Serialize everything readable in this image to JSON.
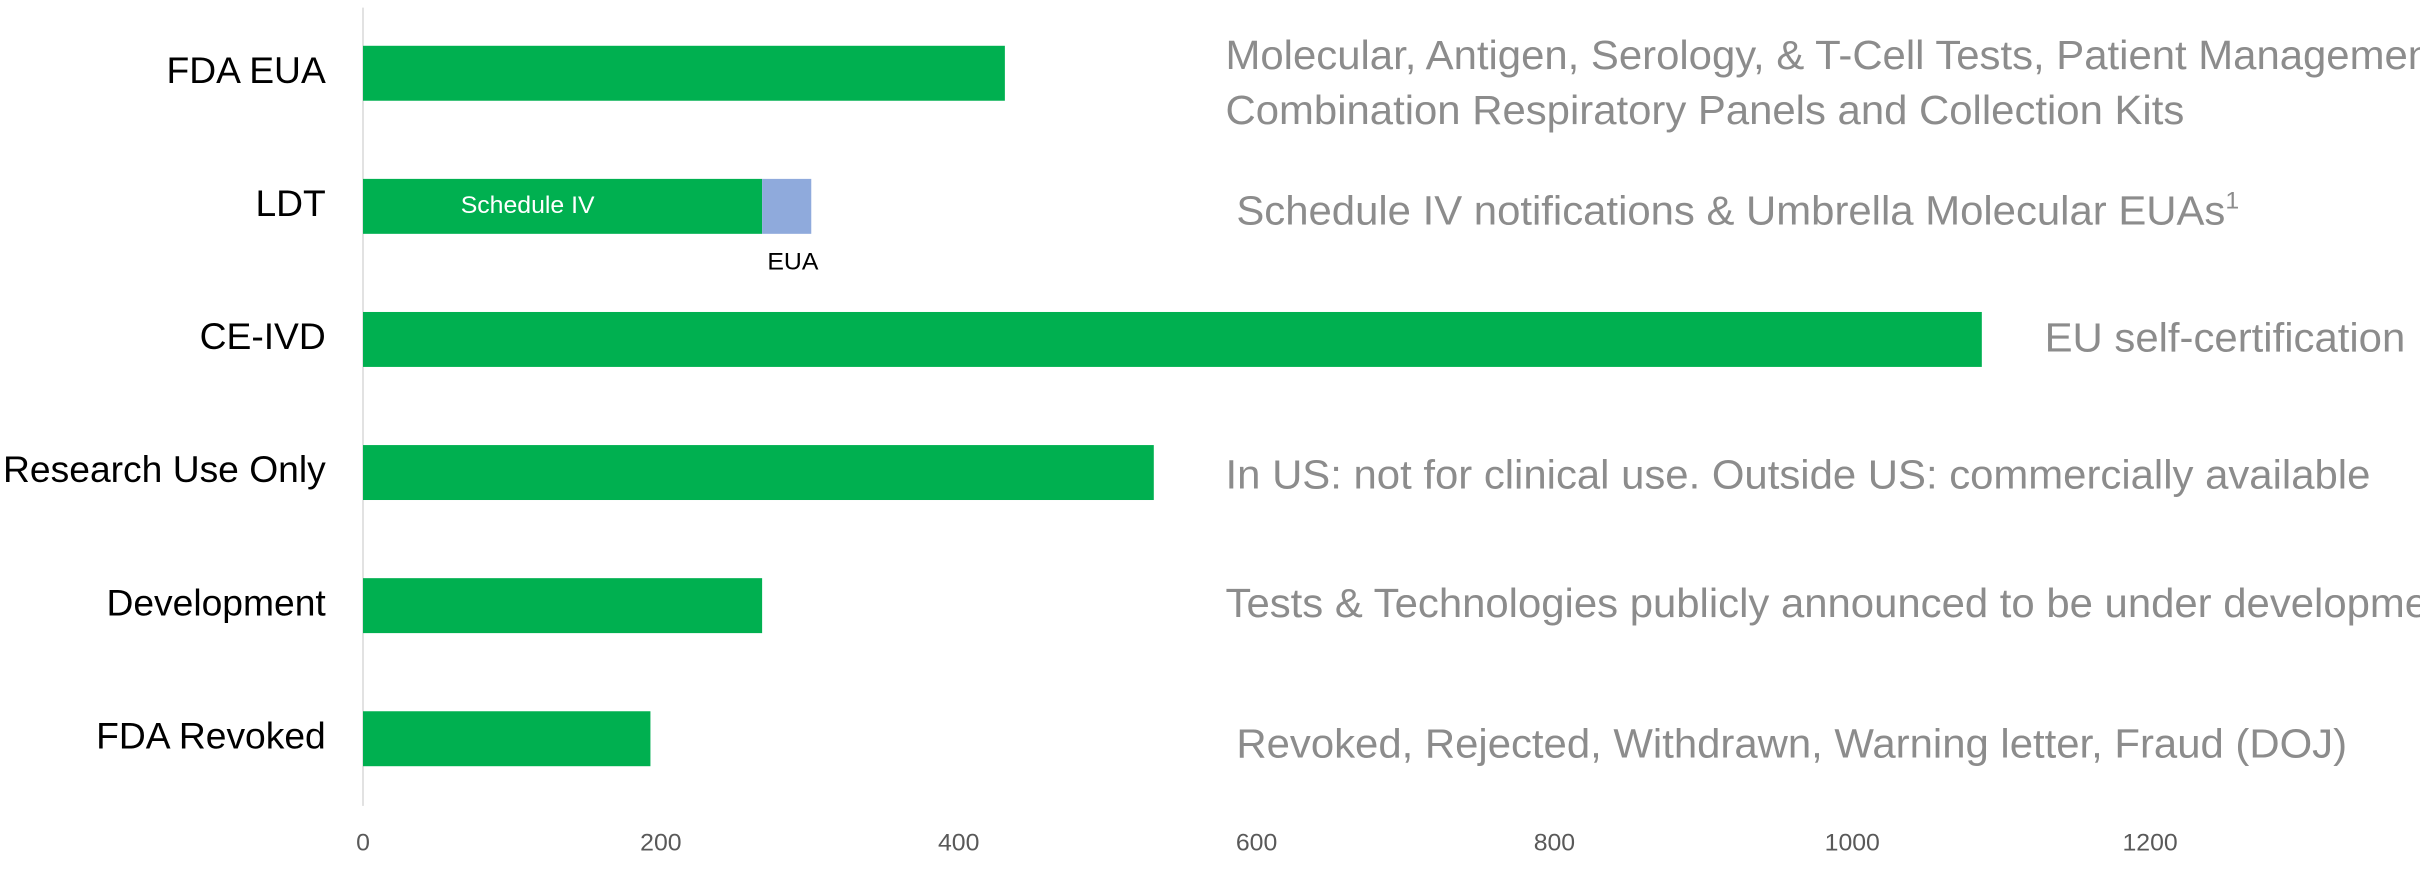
{
  "chart_data": {
    "type": "hbar_stacked",
    "categories": [
      "FDA EUA",
      "LDT",
      "CE-IVD",
      "Research Use Only",
      "Development",
      "FDA Revoked"
    ],
    "series": [
      {
        "name": "Schedule IV",
        "color": "#00b050",
        "values": [
          431,
          268,
          1087,
          531,
          268,
          193
        ]
      },
      {
        "name": "EUA",
        "color": "#8faadc",
        "values": [
          null,
          33,
          null,
          null,
          null,
          null
        ]
      }
    ],
    "xlim": [
      0,
      1200
    ],
    "xticks": [
      0,
      200,
      400,
      600,
      800,
      1000,
      1200
    ],
    "annotations": [
      {
        "lines": [
          "Molecular, Antigen, Serology, & T-Cell Tests, Patient Management,",
          "Combination Respiratory Panels and Collection Kits"
        ]
      },
      {
        "lines": [
          "Schedule IV notifications & Umbrella Molecular EUAs"
        ],
        "sup": "1"
      },
      {
        "lines": [
          "EU self-certification"
        ]
      },
      {
        "lines": [
          "In US: not for clinical use.  Outside US: commercially available"
        ]
      },
      {
        "lines": [
          "Tests & Technologies publicly announced to be under development"
        ]
      },
      {
        "lines": [
          "Revoked, Rejected, Withdrawn, Warning letter, Fraud (DOJ)"
        ]
      }
    ]
  }
}
